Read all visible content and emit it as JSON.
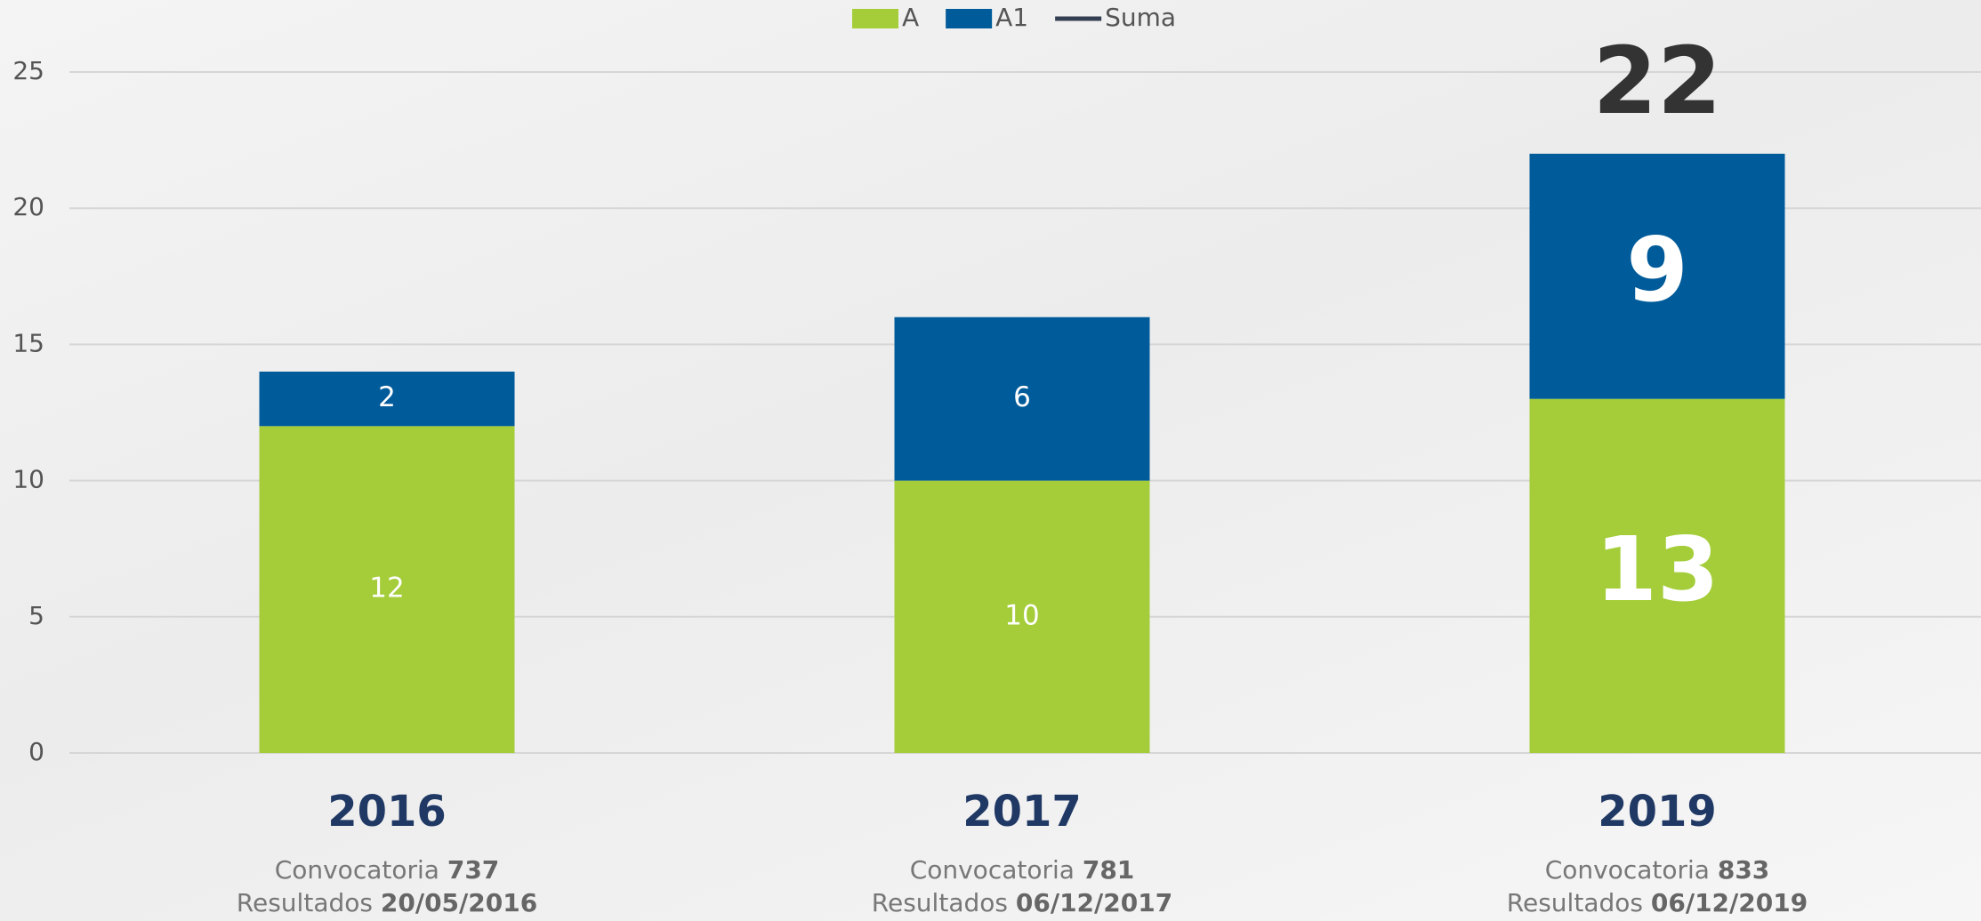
{
  "chart_data": {
    "type": "bar",
    "stacked": true,
    "categories": [
      "2016",
      "2017",
      "2019"
    ],
    "series": [
      {
        "name": "A",
        "color": "#a4cd39",
        "values": [
          12,
          10,
          13
        ]
      },
      {
        "name": "A1",
        "color": "#005b9a",
        "values": [
          2,
          6,
          9
        ]
      },
      {
        "name": "Suma",
        "type": "line",
        "color": "#333f50",
        "values": [
          null,
          null,
          22
        ]
      }
    ],
    "ylim": [
      0,
      25
    ],
    "yticks": [
      0,
      5,
      10,
      15,
      20,
      25
    ],
    "grid": true,
    "legend": "top",
    "note_labels": {
      "convocatoria": "Convocatoria",
      "resultados": "Resultados"
    },
    "category_notes": [
      {
        "convocatoria": "737",
        "resultados": "20/05/2016"
      },
      {
        "convocatoria": "781",
        "resultados": "06/12/2017"
      },
      {
        "convocatoria": "833",
        "resultados": "06/12/2019"
      }
    ]
  }
}
